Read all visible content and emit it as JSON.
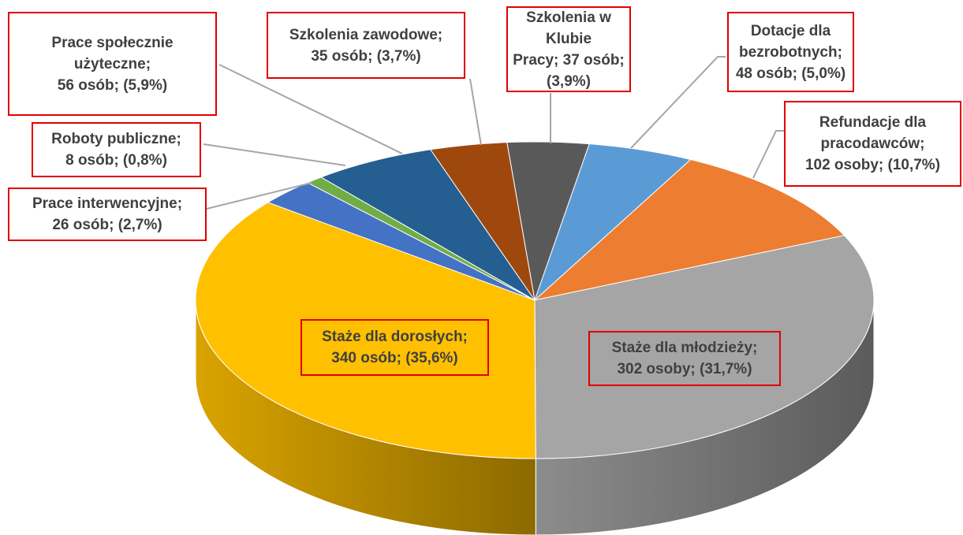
{
  "chart_data": {
    "type": "pie",
    "labels": [
      [
        "Szkolenia w Klubie",
        "Pracy; 37 osób;",
        "(3,9%)"
      ],
      [
        "Dotacje dla",
        "bezrobotnych;",
        "48 osób; (5,0%)"
      ],
      [
        "Refundacje dla",
        "pracodawców;",
        "102 osoby; (10,7%)"
      ],
      [
        "Staże dla młodzieży;",
        "302 osoby; (31,7%)"
      ],
      [
        "Staże dla dorosłych;",
        "340 osób; (35,6%)"
      ],
      [
        "Prace interwencyjne;",
        "26 osób; (2,7%)"
      ],
      [
        "Roboty publiczne;",
        "8 osób; (0,8%)"
      ],
      [
        "Prace społecznie",
        "użyteczne;",
        "56 osób; (5,9%)"
      ],
      [
        "Szkolenia zawodowe;",
        "35 osób; (3,7%)"
      ]
    ],
    "values": [
      37,
      48,
      102,
      302,
      340,
      26,
      8,
      56,
      35
    ],
    "percentages": [
      3.9,
      5.0,
      10.7,
      31.7,
      35.6,
      2.7,
      0.8,
      5.9,
      3.7
    ],
    "colors": [
      "#595959",
      "#5b9bd5",
      "#ed7d31",
      "#a5a5a5",
      "#ffc000",
      "#4472c4",
      "#70ad47",
      "#255e91",
      "#9e480e"
    ]
  }
}
